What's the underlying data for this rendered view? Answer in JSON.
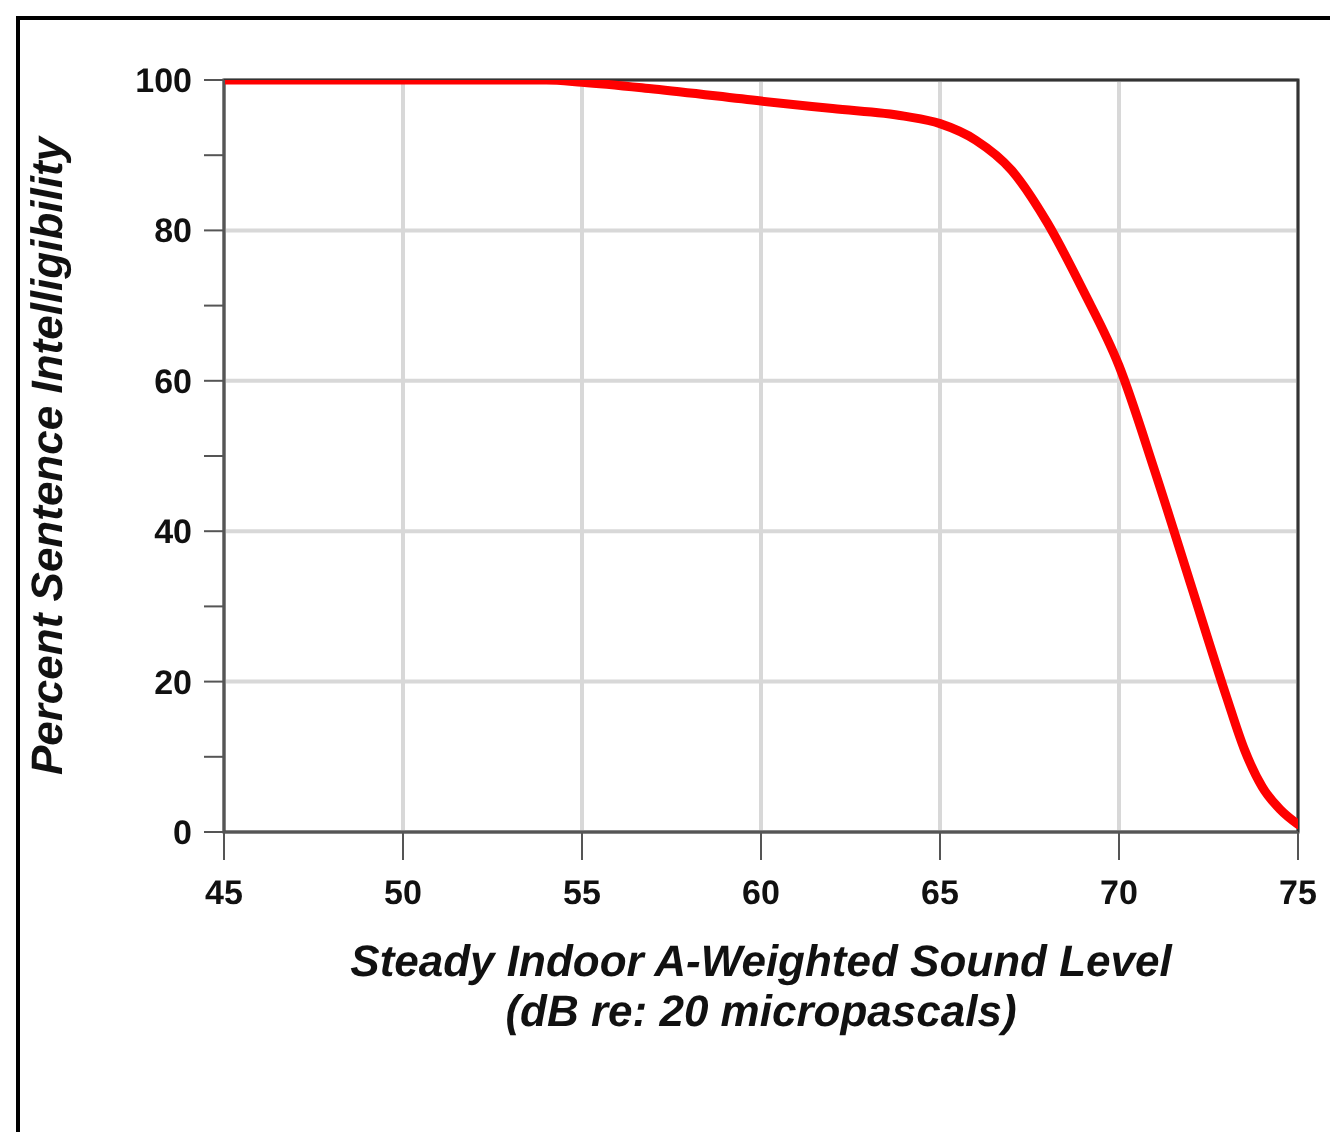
{
  "chart_data": {
    "type": "line",
    "xlabel": "Steady Indoor A-Weighted Sound Level\n(dB re: 20 micropascals)",
    "ylabel": "Percent Sentence Intelligibility",
    "x": [
      45,
      50,
      54,
      55,
      57,
      60,
      62,
      64,
      65,
      66,
      67,
      68,
      69,
      70,
      71,
      72,
      73,
      73.5,
      74,
      74.5,
      75
    ],
    "series": [
      {
        "color": "#ff0000",
        "values": [
          100,
          100,
          100,
          99.7,
          98.8,
          97.2,
          96.2,
          95.2,
          94.2,
          92,
          88,
          81,
          72,
          62,
          48,
          33,
          18,
          11,
          6,
          3,
          1
        ]
      }
    ],
    "xlim": [
      45,
      75
    ],
    "xticks": [
      45,
      50,
      55,
      60,
      65,
      70,
      75
    ],
    "ylim": [
      0,
      100
    ],
    "yticks": [
      0,
      {
        "value": 10,
        "label": null
      },
      20,
      {
        "value": 30,
        "label": null
      },
      40,
      {
        "value": 50,
        "label": null
      },
      60,
      {
        "value": 70,
        "label": null
      },
      80,
      {
        "value": 90,
        "label": null
      },
      100
    ],
    "grid": true,
    "marker": "none",
    "line_style": "solid",
    "legend": false
  }
}
